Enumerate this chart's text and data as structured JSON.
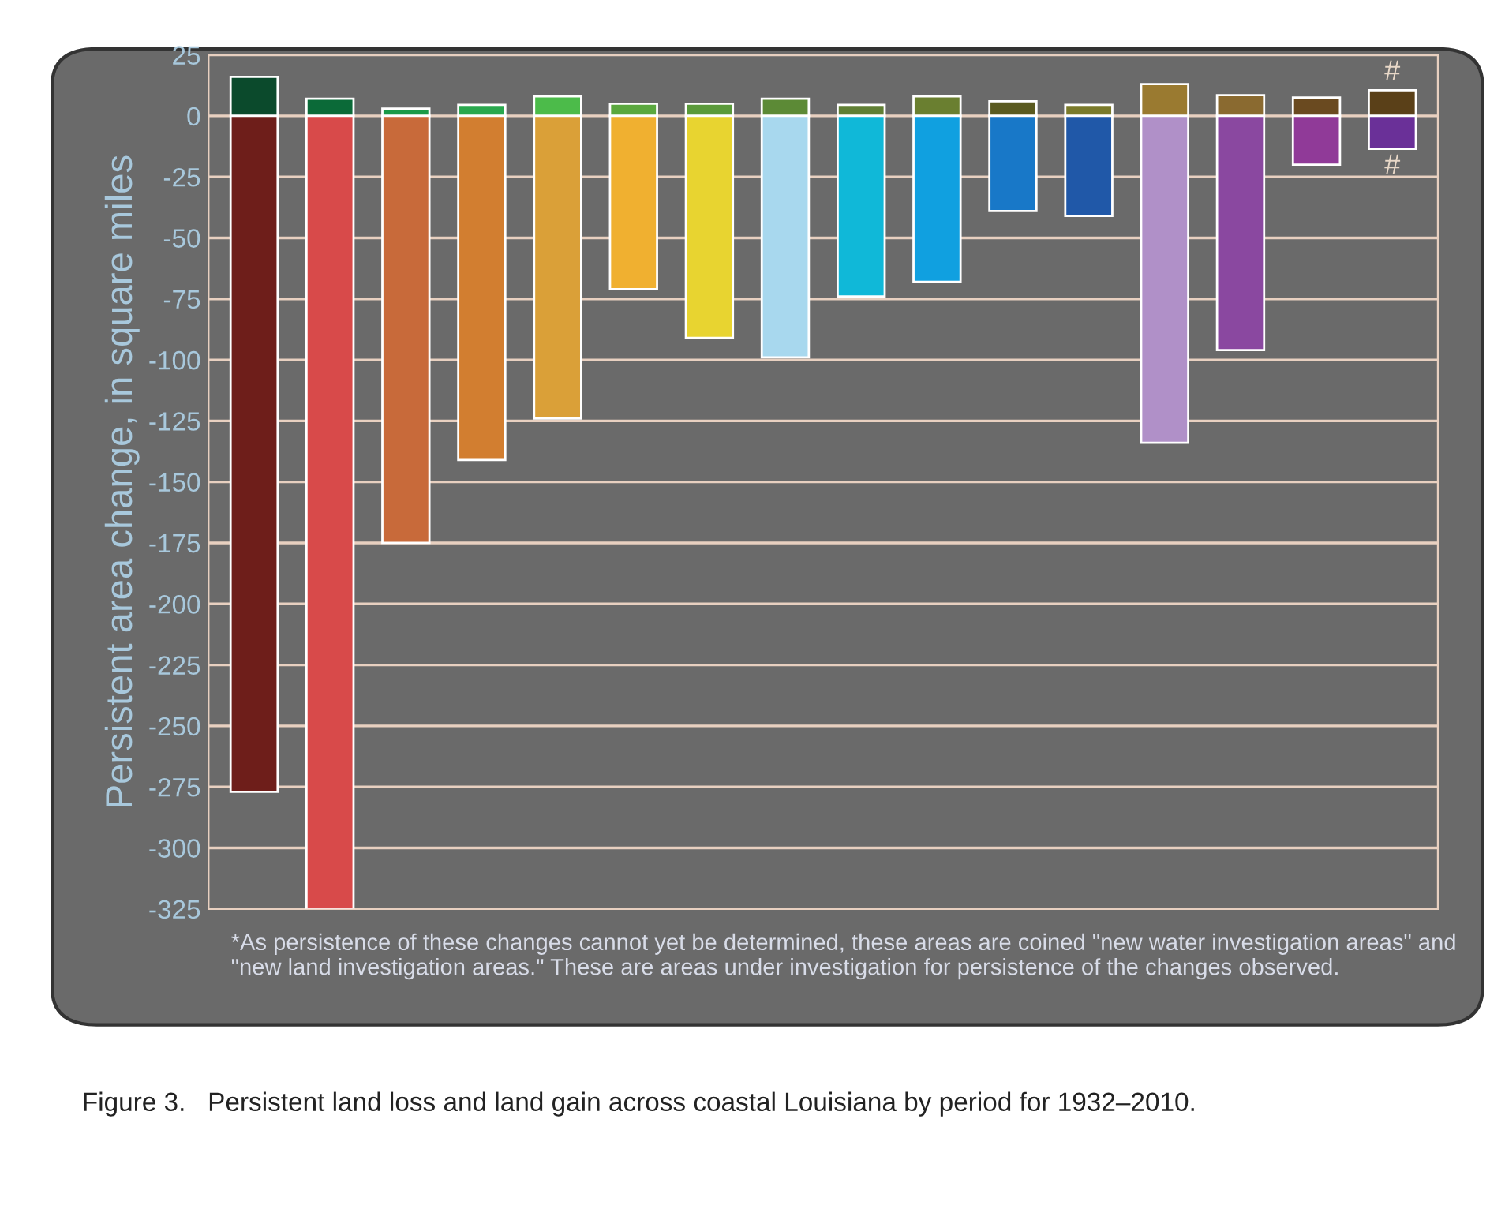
{
  "chart_data": {
    "type": "bar",
    "title": "Figure 3.   Persistent land loss and land gain across coastal Louisiana by period for 1932–2010.",
    "ylabel": "Persistent area change, in square miles",
    "categories": [
      null,
      null,
      null,
      null,
      null,
      null,
      null,
      null,
      null,
      null,
      null,
      null,
      null,
      null,
      null,
      null
    ],
    "stacked": true,
    "series": [
      {
        "colors": [
          "#0b4a2c",
          "#0b6a38",
          "#1a9a48",
          "#2aa84e",
          "#4cbb4a",
          "#5aa83e",
          "#5a9a3a",
          "#5c8a36",
          "#607f34",
          "#6a7f30",
          "#5a5a20",
          "#7a7a2a",
          "#9a7a30",
          "#8a6a30",
          "#6a4a20",
          "#5a4018"
        ],
        "values": [
          16,
          7,
          3,
          4.5,
          8,
          5,
          5,
          7,
          4.5,
          8,
          6,
          4.5,
          13,
          8.5,
          7.5,
          10.5
        ],
        "value_labels": [
          null,
          null,
          null,
          null,
          null,
          null,
          null,
          null,
          null,
          null,
          null,
          null,
          null,
          null,
          null,
          "#"
        ]
      },
      {
        "colors": [
          "#6e1e1a",
          "#d84a4a",
          "#c86a3a",
          "#d27e30",
          "#daa038",
          "#f0b030",
          "#e8d430",
          "#a8d8ee",
          "#10b8d8",
          "#10a0e0",
          "#1878c8",
          "#2058a8",
          "#b090c8",
          "#8a48a0",
          "#903a98",
          "#6a3098"
        ],
        "values": [
          -277,
          -325,
          -175,
          -141,
          -124,
          -71,
          -91,
          -99,
          -74,
          -68,
          -39,
          -41,
          -134,
          -96,
          -20,
          -13.5
        ],
        "value_labels": [
          null,
          null,
          null,
          null,
          null,
          null,
          null,
          null,
          null,
          null,
          null,
          null,
          null,
          null,
          null,
          "#"
        ]
      }
    ],
    "ylim": [
      -325,
      25
    ],
    "yticks": [
      25,
      0,
      -25,
      -50,
      -75,
      -100,
      -125,
      -150,
      -175,
      -200,
      -225,
      -250,
      -275,
      -300,
      -325
    ],
    "grid": "y",
    "tick_labels": "y",
    "annotations": [
      "*As persistence of these changes cannot yet be determined, these areas are coined \"new water investigation areas\" and \"new land investigation areas.\" These are areas under investigation for persistence of the changes observed."
    ]
  }
}
